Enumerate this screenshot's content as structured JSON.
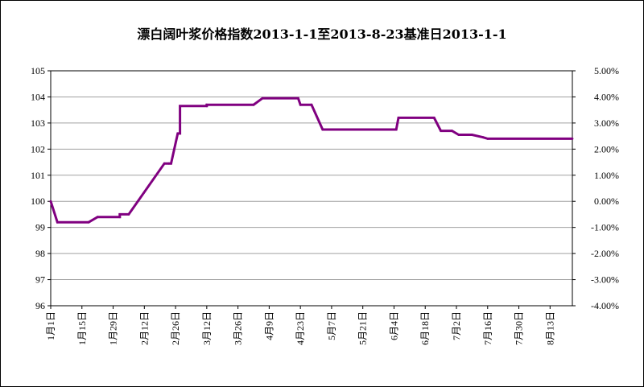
{
  "chart_data": {
    "type": "line",
    "title": "漂白阔叶浆价格指数2013-1-1至2013-8-23基准日2013-1-1",
    "xlabel": "",
    "ylabel": "",
    "ylim": [
      96,
      105
    ],
    "y_ticks": [
      "96",
      "97",
      "98",
      "99",
      "100",
      "101",
      "102",
      "103",
      "104",
      "105"
    ],
    "y2lim": [
      -4.0,
      5.0
    ],
    "y2_ticks": [
      "-4.00%",
      "-3.00%",
      "-2.00%",
      "-1.00%",
      "0.00%",
      "1.00%",
      "2.00%",
      "3.00%",
      "4.00%",
      "5.00%"
    ],
    "x_ticks": [
      "1月1日",
      "1月15日",
      "1月29日",
      "2月12日",
      "2月26日",
      "3月12日",
      "3月26日",
      "4月9日",
      "4月23日",
      "5月7日",
      "5月21日",
      "6月4日",
      "6月18日",
      "7月2日",
      "7月16日",
      "7月30日",
      "8月13日"
    ],
    "x_range": [
      "2013-01-01",
      "2013-08-23"
    ],
    "grid": true,
    "legend": "none",
    "line_color": "#800080",
    "series": [
      {
        "x": [
          "2013-01-01",
          "2013-01-04",
          "2013-01-18",
          "2013-01-22",
          "2013-02-01",
          "2013-02-01",
          "2013-02-05",
          "2013-02-21",
          "2013-02-23",
          "2013-02-24",
          "2013-02-27",
          "2013-02-28",
          "2013-02-28",
          "2013-03-12",
          "2013-03-12",
          "2013-04-02",
          "2013-04-06",
          "2013-04-22",
          "2013-04-23",
          "2013-04-28",
          "2013-05-03",
          "2013-06-05",
          "2013-06-06",
          "2013-06-22",
          "2013-06-25",
          "2013-06-30",
          "2013-07-03",
          "2013-07-09",
          "2013-07-14",
          "2013-07-16",
          "2013-08-23"
        ],
        "values": [
          100.0,
          99.2,
          99.2,
          99.4,
          99.4,
          99.5,
          99.5,
          101.45,
          101.45,
          101.45,
          102.6,
          102.6,
          103.65,
          103.65,
          103.7,
          103.7,
          103.95,
          103.95,
          103.7,
          103.7,
          102.75,
          102.75,
          103.2,
          103.2,
          102.7,
          102.7,
          102.55,
          102.55,
          102.45,
          102.4,
          102.4
        ]
      }
    ]
  }
}
